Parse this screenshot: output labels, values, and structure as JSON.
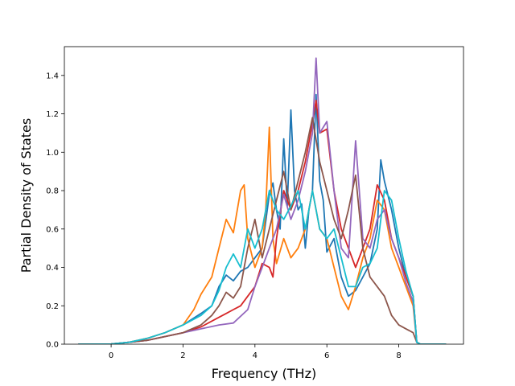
{
  "chart_data": {
    "type": "line",
    "title": "",
    "xlabel": "Frequency (THz)",
    "ylabel": "Partial Density of States",
    "xlim": [
      -1.3,
      9.8
    ],
    "ylim": [
      0.0,
      1.55
    ],
    "xticks": [
      0,
      2,
      4,
      6,
      8
    ],
    "xtick_labels": [
      "0",
      "2",
      "4",
      "6",
      "8"
    ],
    "yticks": [
      0.0,
      0.2,
      0.4,
      0.6,
      0.8,
      1.0,
      1.2,
      1.4
    ],
    "ytick_labels": [
      "0.0",
      "0.2",
      "0.4",
      "0.6",
      "0.8",
      "1.0",
      "1.2",
      "1.4"
    ],
    "grid": false,
    "legend": "none",
    "series": [
      {
        "color": "#1f77b4",
        "x": [
          -0.9,
          0,
          0.5,
          1,
          1.5,
          2,
          2.5,
          2.8,
          3,
          3.2,
          3.4,
          3.6,
          3.8,
          4,
          4.2,
          4.4,
          4.5,
          4.6,
          4.7,
          4.8,
          4.9,
          5,
          5.1,
          5.2,
          5.3,
          5.4,
          5.5,
          5.6,
          5.7,
          5.8,
          5.9,
          6,
          6.2,
          6.4,
          6.6,
          6.8,
          7,
          7.2,
          7.4,
          7.5,
          7.6,
          7.8,
          8,
          8.2,
          8.4,
          8.5,
          8.6,
          9.3
        ],
        "y": [
          0,
          0.001,
          0.01,
          0.03,
          0.06,
          0.1,
          0.16,
          0.2,
          0.3,
          0.36,
          0.33,
          0.38,
          0.4,
          0.45,
          0.5,
          0.78,
          0.84,
          0.7,
          0.6,
          1.07,
          0.72,
          1.22,
          0.8,
          0.7,
          0.73,
          0.5,
          0.7,
          0.8,
          1.3,
          0.85,
          0.75,
          0.48,
          0.55,
          0.35,
          0.25,
          0.28,
          0.35,
          0.42,
          0.6,
          0.96,
          0.85,
          0.7,
          0.5,
          0.35,
          0.25,
          0.01,
          0,
          0
        ]
      },
      {
        "color": "#ff7f0e",
        "x": [
          -0.9,
          0,
          0.5,
          1,
          1.5,
          2,
          2.3,
          2.5,
          2.8,
          3,
          3.2,
          3.4,
          3.6,
          3.7,
          3.8,
          4,
          4.2,
          4.3,
          4.4,
          4.5,
          4.6,
          4.8,
          5,
          5.2,
          5.4,
          5.6,
          5.8,
          6,
          6.2,
          6.4,
          6.6,
          6.8,
          7,
          7.2,
          7.4,
          7.6,
          7.8,
          8,
          8.2,
          8.4,
          8.5,
          8.6,
          9.3
        ],
        "y": [
          0,
          0.001,
          0.01,
          0.03,
          0.06,
          0.1,
          0.18,
          0.26,
          0.35,
          0.5,
          0.65,
          0.58,
          0.8,
          0.83,
          0.55,
          0.4,
          0.5,
          0.7,
          1.13,
          0.55,
          0.42,
          0.55,
          0.45,
          0.5,
          0.6,
          0.8,
          0.6,
          0.55,
          0.4,
          0.25,
          0.18,
          0.3,
          0.45,
          0.55,
          0.75,
          0.7,
          0.5,
          0.4,
          0.3,
          0.2,
          0.01,
          0,
          0
        ]
      },
      {
        "color": "#d62728",
        "x": [
          -0.9,
          0,
          0.5,
          1,
          1.5,
          2,
          2.5,
          3,
          3.2,
          3.4,
          3.6,
          3.8,
          4,
          4.2,
          4.4,
          4.5,
          4.6,
          4.8,
          5,
          5.2,
          5.4,
          5.6,
          5.7,
          5.8,
          6,
          6.2,
          6.4,
          6.6,
          6.8,
          7,
          7.2,
          7.4,
          7.6,
          7.8,
          8,
          8.2,
          8.4,
          8.5,
          8.6,
          9.3
        ],
        "y": [
          0,
          0.001,
          0.01,
          0.02,
          0.04,
          0.06,
          0.09,
          0.14,
          0.16,
          0.18,
          0.2,
          0.25,
          0.3,
          0.42,
          0.4,
          0.35,
          0.55,
          0.8,
          0.7,
          0.8,
          0.95,
          1.15,
          1.27,
          1.1,
          1.12,
          0.8,
          0.6,
          0.5,
          0.4,
          0.5,
          0.6,
          0.83,
          0.75,
          0.55,
          0.45,
          0.35,
          0.25,
          0.01,
          0,
          0
        ]
      },
      {
        "color": "#9467bd",
        "x": [
          -0.9,
          0,
          0.5,
          1,
          1.5,
          2,
          2.5,
          3,
          3.4,
          3.8,
          4,
          4.2,
          4.4,
          4.6,
          4.8,
          5,
          5.2,
          5.4,
          5.6,
          5.7,
          5.8,
          6,
          6.2,
          6.4,
          6.6,
          6.8,
          7,
          7.2,
          7.4,
          7.6,
          7.8,
          8,
          8.2,
          8.4,
          8.5,
          8.6,
          9.3
        ],
        "y": [
          0,
          0.001,
          0.01,
          0.02,
          0.04,
          0.06,
          0.08,
          0.1,
          0.11,
          0.18,
          0.3,
          0.4,
          0.5,
          0.6,
          0.78,
          0.65,
          0.75,
          0.9,
          1.1,
          1.49,
          1.1,
          1.16,
          0.8,
          0.5,
          0.45,
          1.06,
          0.55,
          0.5,
          0.65,
          0.7,
          0.55,
          0.45,
          0.32,
          0.22,
          0.01,
          0,
          0
        ]
      },
      {
        "color": "#8c564b",
        "x": [
          -0.9,
          0,
          0.5,
          1,
          1.5,
          2,
          2.5,
          2.8,
          3,
          3.2,
          3.4,
          3.6,
          3.8,
          4,
          4.2,
          4.4,
          4.6,
          4.8,
          5,
          5.2,
          5.4,
          5.6,
          5.8,
          6,
          6.2,
          6.4,
          6.6,
          6.8,
          7,
          7.2,
          7.4,
          7.6,
          7.8,
          8,
          8.2,
          8.4,
          8.5,
          8.6,
          9.3
        ],
        "y": [
          0,
          0.001,
          0.01,
          0.02,
          0.04,
          0.06,
          0.1,
          0.15,
          0.2,
          0.27,
          0.24,
          0.3,
          0.5,
          0.65,
          0.45,
          0.6,
          0.75,
          0.9,
          0.7,
          0.85,
          1.0,
          1.18,
          0.95,
          0.8,
          0.65,
          0.55,
          0.7,
          0.88,
          0.5,
          0.35,
          0.3,
          0.25,
          0.15,
          0.1,
          0.08,
          0.06,
          0.01,
          0,
          0
        ]
      },
      {
        "color": "#17becf",
        "x": [
          -0.9,
          0,
          0.5,
          1,
          1.5,
          2,
          2.5,
          2.8,
          3,
          3.2,
          3.4,
          3.6,
          3.8,
          4,
          4.2,
          4.4,
          4.6,
          4.8,
          5,
          5.2,
          5.4,
          5.6,
          5.8,
          6,
          6.2,
          6.4,
          6.6,
          6.8,
          7,
          7.2,
          7.4,
          7.6,
          7.8,
          8,
          8.2,
          8.4,
          8.5,
          8.6,
          9.3
        ],
        "y": [
          0,
          0.001,
          0.01,
          0.03,
          0.06,
          0.1,
          0.15,
          0.2,
          0.28,
          0.4,
          0.47,
          0.4,
          0.6,
          0.5,
          0.6,
          0.8,
          0.7,
          0.65,
          0.72,
          0.8,
          0.6,
          0.8,
          0.6,
          0.55,
          0.6,
          0.45,
          0.3,
          0.3,
          0.4,
          0.42,
          0.5,
          0.8,
          0.75,
          0.55,
          0.38,
          0.25,
          0.01,
          0,
          0
        ]
      }
    ]
  }
}
